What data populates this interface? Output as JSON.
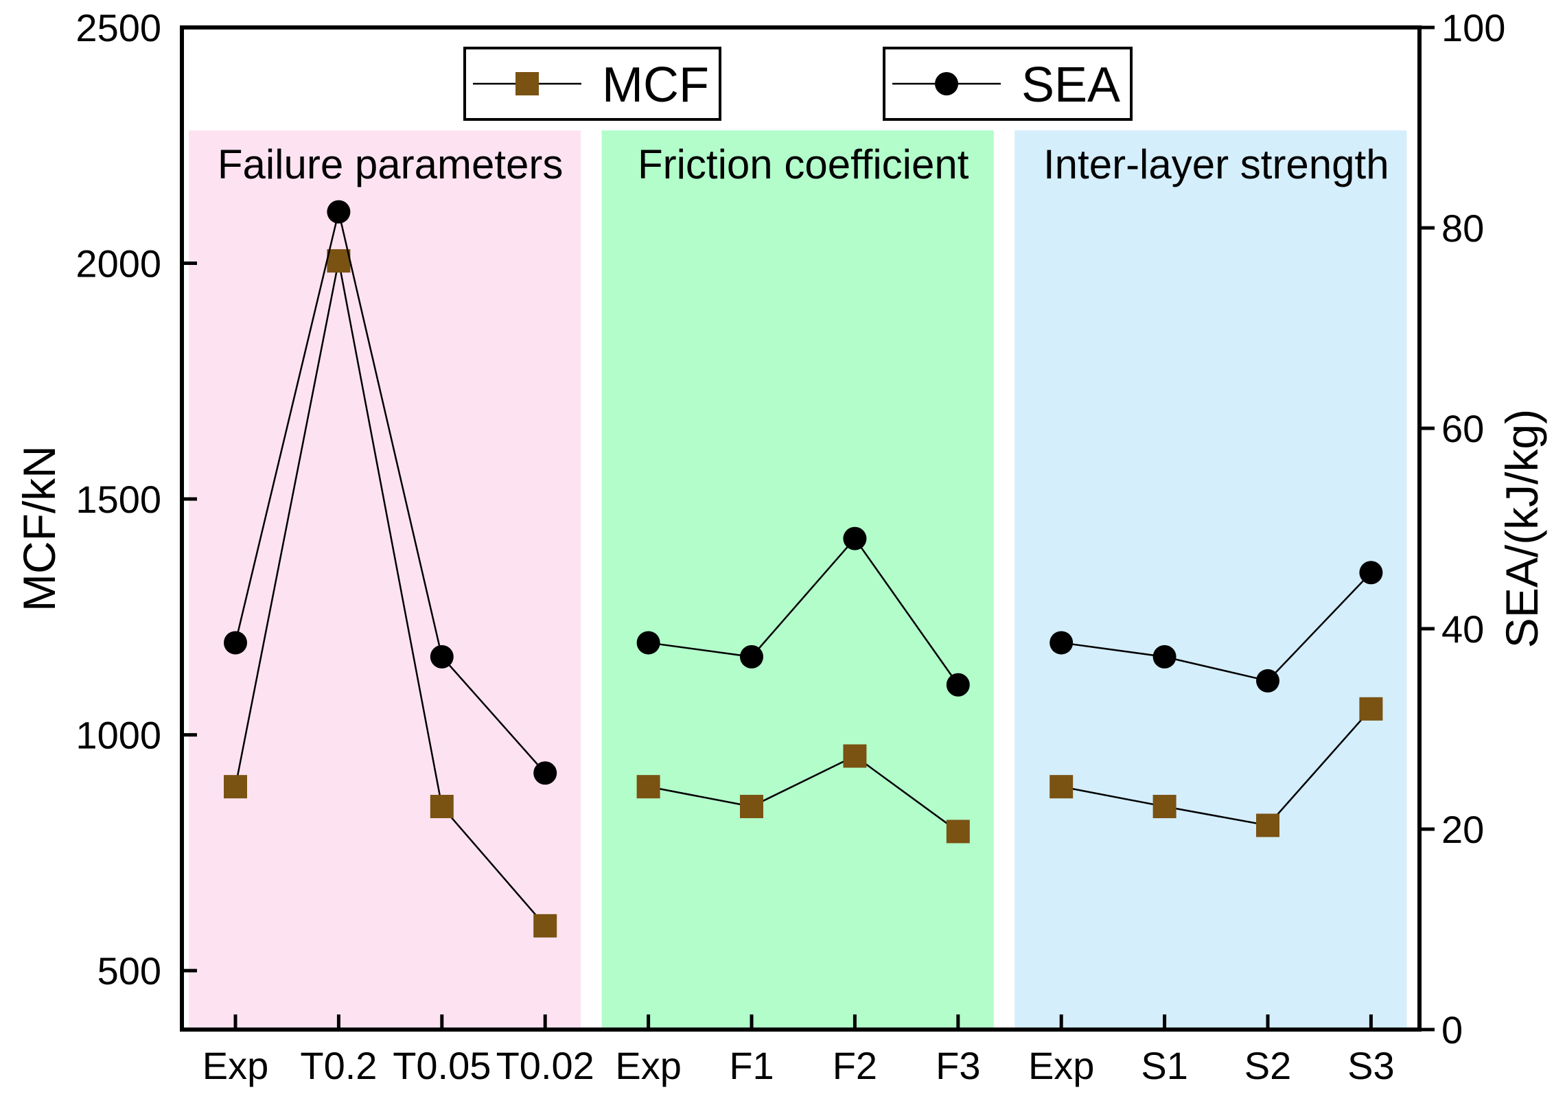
{
  "chart_data": {
    "type": "line",
    "categories": [
      "Exp",
      "T0.2",
      "T0.05",
      "T0.02",
      "Exp",
      "F1",
      "F2",
      "F3",
      "Exp",
      "S1",
      "S2",
      "S3"
    ],
    "groups": [
      {
        "title": "Failure parameters",
        "start": 0,
        "end": 3,
        "color": "#fde3f1"
      },
      {
        "title": "Friction coefficient",
        "start": 4,
        "end": 7,
        "color": "#b3fdcb"
      },
      {
        "title": "Inter-layer strength",
        "start": 8,
        "end": 11,
        "color": "#d4eefb"
      }
    ],
    "series": [
      {
        "name": "MCF",
        "axis": "left",
        "marker": "square",
        "color": "#7a5212",
        "values": [
          890,
          2005,
          848,
          595,
          890,
          848,
          955,
          795,
          890,
          848,
          808,
          1055
        ]
      },
      {
        "name": "SEA",
        "axis": "right",
        "marker": "circle",
        "color": "#000000",
        "values": [
          38.6,
          81.6,
          37.2,
          25.6,
          38.6,
          37.2,
          49.0,
          34.4,
          38.6,
          37.2,
          34.8,
          45.6
        ]
      }
    ],
    "ylabel": "MCF/kN",
    "ylim": [
      375,
      2500
    ],
    "yticks": [
      500,
      1000,
      1500,
      2000,
      2500
    ],
    "y2label": "SEA/(kJ/kg)",
    "y2lim": [
      0,
      100
    ],
    "y2ticks": [
      0,
      20,
      40,
      60,
      80,
      100
    ],
    "legend": [
      {
        "label": "MCF",
        "marker": "square"
      },
      {
        "label": "SEA",
        "marker": "circle"
      }
    ],
    "legend_position": "top-center"
  }
}
